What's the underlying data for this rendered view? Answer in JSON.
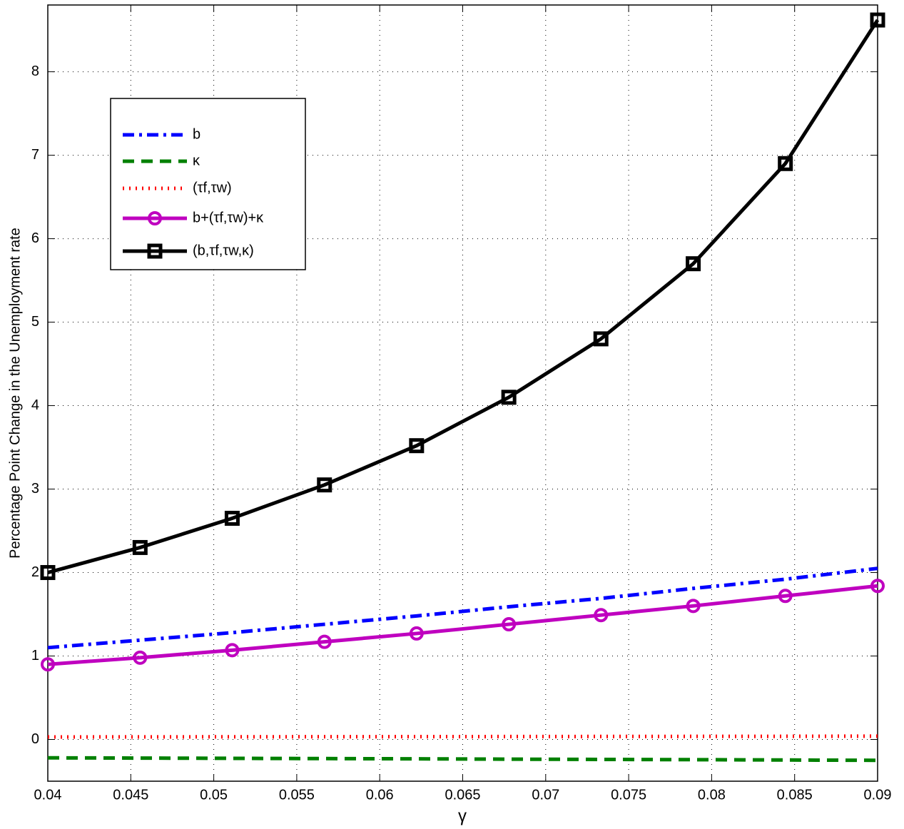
{
  "chart_data": {
    "type": "line",
    "x_label": "γ",
    "y_label": "Percentage Point Change in the Unemployment rate",
    "x": [
      0.04,
      0.04556,
      0.05111,
      0.05667,
      0.06222,
      0.06778,
      0.07333,
      0.07889,
      0.08444,
      0.09
    ],
    "series": [
      {
        "name": "b",
        "color": "#0000ff",
        "style": "dash-dot",
        "marker": "none",
        "values": [
          1.1,
          1.19,
          1.28,
          1.38,
          1.48,
          1.59,
          1.69,
          1.81,
          1.92,
          2.05
        ]
      },
      {
        "name": "κ",
        "color": "#008000",
        "style": "dashed",
        "marker": "none",
        "values": [
          -0.22,
          -0.223,
          -0.226,
          -0.229,
          -0.232,
          -0.236,
          -0.239,
          -0.242,
          -0.246,
          -0.25
        ]
      },
      {
        "name": "(τf,τw)",
        "color": "#ff0000",
        "style": "dotted",
        "marker": "none",
        "values": [
          0.03,
          0.031,
          0.032,
          0.033,
          0.034,
          0.035,
          0.036,
          0.037,
          0.038,
          0.04
        ]
      },
      {
        "name": "b+(τf,τw)+κ",
        "color": "#bf00bf",
        "style": "solid",
        "marker": "circle",
        "values": [
          0.9,
          0.98,
          1.07,
          1.17,
          1.27,
          1.38,
          1.49,
          1.6,
          1.72,
          1.84
        ]
      },
      {
        "name": "(b,τf,τw,κ)",
        "color": "#000000",
        "style": "solid",
        "marker": "square",
        "values": [
          2.0,
          2.3,
          2.65,
          3.05,
          3.52,
          4.1,
          4.8,
          5.7,
          6.9,
          8.62
        ]
      }
    ],
    "xlim": [
      0.04,
      0.09
    ],
    "xticks": [
      0.04,
      0.045,
      0.05,
      0.055,
      0.06,
      0.065,
      0.07,
      0.075,
      0.08,
      0.085,
      0.09
    ],
    "ylim": [
      -0.5,
      8.8
    ],
    "yticks": [
      0,
      1,
      2,
      3,
      4,
      5,
      6,
      7,
      8
    ],
    "grid": true,
    "legend": "upper-left"
  }
}
